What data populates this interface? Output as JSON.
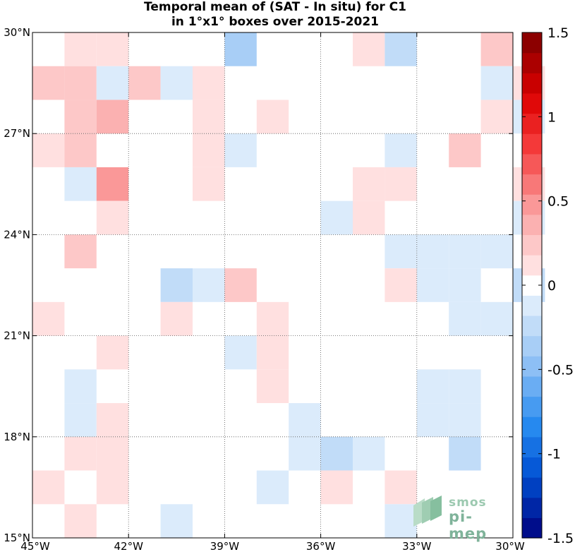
{
  "title": {
    "line1": "Temporal mean of (SAT - In situ) for C1",
    "line2": "in 1°x1° boxes over 2015-2021"
  },
  "logo": {
    "line1": "smos",
    "line2": "pi-mep"
  },
  "chart_data": {
    "type": "heatmap",
    "title": "Temporal mean of (SAT - In situ) for C1 in 1°x1° boxes over 2015-2021",
    "xlabel": "",
    "ylabel": "",
    "x_range": [
      -45,
      -30
    ],
    "y_range": [
      15,
      30
    ],
    "grid": true,
    "x_ticks": [
      {
        "value": -45,
        "label": "45°W"
      },
      {
        "value": -42,
        "label": "42°W"
      },
      {
        "value": -39,
        "label": "39°W"
      },
      {
        "value": -36,
        "label": "36°W"
      },
      {
        "value": -33,
        "label": "33°W"
      },
      {
        "value": -30,
        "label": "30°W"
      }
    ],
    "y_ticks": [
      {
        "value": 15,
        "label": "15°N"
      },
      {
        "value": 18,
        "label": "18°N"
      },
      {
        "value": 21,
        "label": "21°N"
      },
      {
        "value": 24,
        "label": "24°N"
      },
      {
        "value": 27,
        "label": "27°N"
      },
      {
        "value": 30,
        "label": "30°N"
      }
    ],
    "colorbar": {
      "range": [
        -1.5,
        1.5
      ],
      "ticks": [
        {
          "value": 1.5,
          "label": "1.5"
        },
        {
          "value": 1,
          "label": "1"
        },
        {
          "value": 0.5,
          "label": "0.5"
        },
        {
          "value": 0,
          "label": "0"
        },
        {
          "value": -0.5,
          "label": "-0.5"
        },
        {
          "value": -1,
          "label": "-1"
        },
        {
          "value": -1.5,
          "label": "-1.5"
        }
      ],
      "levels": 25,
      "zero_color": "#ffffff"
    },
    "cell_size_deg": 1,
    "cells": [
      {
        "lon": -44,
        "lat": 29,
        "value": 0.1
      },
      {
        "lon": -43,
        "lat": 29,
        "value": 0.1
      },
      {
        "lon": -39,
        "lat": 29,
        "value": -0.35
      },
      {
        "lon": -35,
        "lat": 29,
        "value": 0.1
      },
      {
        "lon": -34,
        "lat": 29,
        "value": -0.3
      },
      {
        "lon": -31,
        "lat": 29,
        "value": 0.25
      },
      {
        "lon": -45,
        "lat": 28,
        "value": 0.2
      },
      {
        "lon": -44,
        "lat": 28,
        "value": 0.2
      },
      {
        "lon": -43,
        "lat": 28,
        "value": -0.1
      },
      {
        "lon": -42,
        "lat": 28,
        "value": 0.25
      },
      {
        "lon": -41,
        "lat": 28,
        "value": -0.1
      },
      {
        "lon": -40,
        "lat": 28,
        "value": 0.1
      },
      {
        "lon": -31,
        "lat": 28,
        "value": -0.1
      },
      {
        "lon": -30,
        "lat": 28,
        "value": 0.1
      },
      {
        "lon": -44,
        "lat": 27,
        "value": 0.2
      },
      {
        "lon": -43,
        "lat": 27,
        "value": 0.4
      },
      {
        "lon": -40,
        "lat": 27,
        "value": 0.1
      },
      {
        "lon": -38,
        "lat": 27,
        "value": 0.1
      },
      {
        "lon": -31,
        "lat": 27,
        "value": 0.1
      },
      {
        "lon": -30,
        "lat": 27,
        "value": -0.1
      },
      {
        "lon": -45,
        "lat": 26,
        "value": 0.1
      },
      {
        "lon": -44,
        "lat": 26,
        "value": 0.25
      },
      {
        "lon": -40,
        "lat": 26,
        "value": 0.1
      },
      {
        "lon": -39,
        "lat": 26,
        "value": -0.1
      },
      {
        "lon": -34,
        "lat": 26,
        "value": -0.1
      },
      {
        "lon": -32,
        "lat": 26,
        "value": 0.25
      },
      {
        "lon": -44,
        "lat": 25,
        "value": -0.1
      },
      {
        "lon": -43,
        "lat": 25,
        "value": 0.45
      },
      {
        "lon": -40,
        "lat": 25,
        "value": 0.1
      },
      {
        "lon": -35,
        "lat": 25,
        "value": 0.1
      },
      {
        "lon": -34,
        "lat": 25,
        "value": 0.1
      },
      {
        "lon": -30,
        "lat": 25,
        "value": 0.1
      },
      {
        "lon": -43,
        "lat": 24,
        "value": 0.1
      },
      {
        "lon": -36,
        "lat": 24,
        "value": -0.1
      },
      {
        "lon": -35,
        "lat": 24,
        "value": 0.1
      },
      {
        "lon": -30,
        "lat": 24,
        "value": -0.1
      },
      {
        "lon": -44,
        "lat": 23,
        "value": 0.25
      },
      {
        "lon": -34,
        "lat": 23,
        "value": -0.1
      },
      {
        "lon": -33,
        "lat": 23,
        "value": -0.1
      },
      {
        "lon": -32,
        "lat": 23,
        "value": -0.1
      },
      {
        "lon": -31,
        "lat": 23,
        "value": -0.1
      },
      {
        "lon": -41,
        "lat": 22,
        "value": -0.2
      },
      {
        "lon": -40,
        "lat": 22,
        "value": -0.1
      },
      {
        "lon": -39,
        "lat": 22,
        "value": 0.25
      },
      {
        "lon": -34,
        "lat": 22,
        "value": 0.1
      },
      {
        "lon": -33,
        "lat": 22,
        "value": -0.1
      },
      {
        "lon": -32,
        "lat": 22,
        "value": -0.1
      },
      {
        "lon": -30,
        "lat": 22,
        "value": -0.3
      },
      {
        "lon": -45,
        "lat": 21,
        "value": 0.1
      },
      {
        "lon": -41,
        "lat": 21,
        "value": 0.1
      },
      {
        "lon": -38,
        "lat": 21,
        "value": 0.1
      },
      {
        "lon": -32,
        "lat": 21,
        "value": -0.1
      },
      {
        "lon": -31,
        "lat": 21,
        "value": -0.1
      },
      {
        "lon": -43,
        "lat": 20,
        "value": 0.1
      },
      {
        "lon": -39,
        "lat": 20,
        "value": -0.1
      },
      {
        "lon": -38,
        "lat": 20,
        "value": 0.1
      },
      {
        "lon": -44,
        "lat": 19,
        "value": -0.1
      },
      {
        "lon": -38,
        "lat": 19,
        "value": 0.1
      },
      {
        "lon": -33,
        "lat": 19,
        "value": -0.1
      },
      {
        "lon": -32,
        "lat": 19,
        "value": -0.1
      },
      {
        "lon": -44,
        "lat": 18,
        "value": -0.1
      },
      {
        "lon": -43,
        "lat": 18,
        "value": 0.1
      },
      {
        "lon": -37,
        "lat": 18,
        "value": -0.1
      },
      {
        "lon": -33,
        "lat": 18,
        "value": -0.1
      },
      {
        "lon": -32,
        "lat": 18,
        "value": -0.1
      },
      {
        "lon": -44,
        "lat": 17,
        "value": 0.1
      },
      {
        "lon": -43,
        "lat": 17,
        "value": 0.1
      },
      {
        "lon": -37,
        "lat": 17,
        "value": -0.1
      },
      {
        "lon": -36,
        "lat": 17,
        "value": -0.2
      },
      {
        "lon": -35,
        "lat": 17,
        "value": -0.1
      },
      {
        "lon": -32,
        "lat": 17,
        "value": -0.3
      },
      {
        "lon": -45,
        "lat": 16,
        "value": 0.1
      },
      {
        "lon": -43,
        "lat": 16,
        "value": 0.1
      },
      {
        "lon": -38,
        "lat": 16,
        "value": -0.1
      },
      {
        "lon": -36,
        "lat": 16,
        "value": 0.1
      },
      {
        "lon": -34,
        "lat": 16,
        "value": 0.1
      },
      {
        "lon": -44,
        "lat": 15,
        "value": 0.1
      },
      {
        "lon": -41,
        "lat": 15,
        "value": -0.1
      },
      {
        "lon": -34,
        "lat": 15,
        "value": -0.1
      }
    ]
  }
}
